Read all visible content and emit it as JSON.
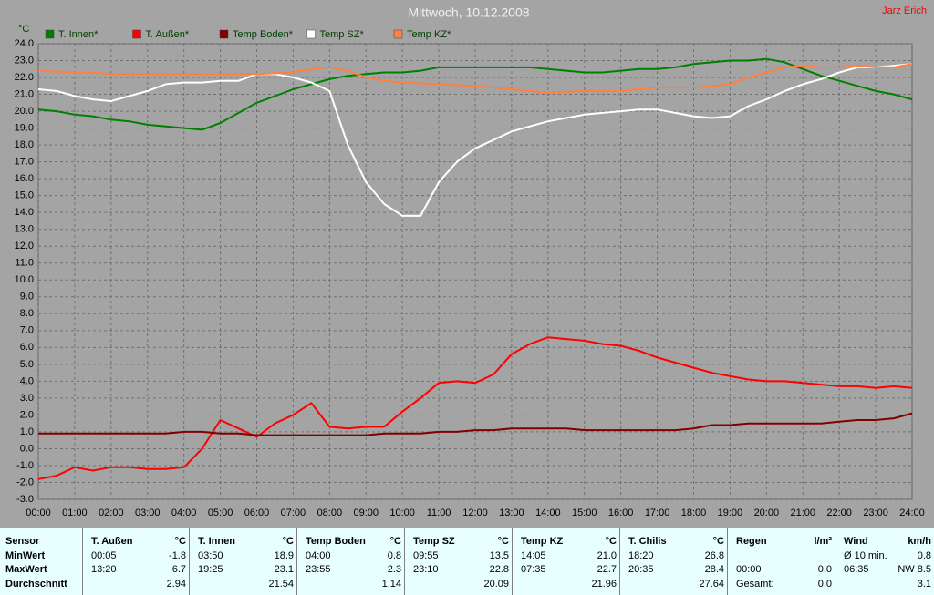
{
  "chart_data": {
    "type": "line",
    "title": "Mittwoch, 10.12.2008",
    "annotation": "Jarz Erich",
    "ylabel": "°C",
    "grid": true,
    "xlim": [
      0,
      24
    ],
    "xticks": [
      {
        "value": 0,
        "label": "00:00"
      },
      {
        "value": 1,
        "label": "01:00"
      },
      {
        "value": 2,
        "label": "02:00"
      },
      {
        "value": 3,
        "label": "03:00"
      },
      {
        "value": 4,
        "label": "04:00"
      },
      {
        "value": 5,
        "label": "05:00"
      },
      {
        "value": 6,
        "label": "06:00"
      },
      {
        "value": 7,
        "label": "07:00"
      },
      {
        "value": 8,
        "label": "08:00"
      },
      {
        "value": 9,
        "label": "09:00"
      },
      {
        "value": 10,
        "label": "10:00"
      },
      {
        "value": 11,
        "label": "11:00"
      },
      {
        "value": 12,
        "label": "12:00"
      },
      {
        "value": 13,
        "label": "13:00"
      },
      {
        "value": 14,
        "label": "14:00"
      },
      {
        "value": 15,
        "label": "15:00"
      },
      {
        "value": 16,
        "label": "16:00"
      },
      {
        "value": 17,
        "label": "17:00"
      },
      {
        "value": 18,
        "label": "18:00"
      },
      {
        "value": 19,
        "label": "19:00"
      },
      {
        "value": 20,
        "label": "20:00"
      },
      {
        "value": 21,
        "label": "21:00"
      },
      {
        "value": 22,
        "label": "22:00"
      },
      {
        "value": 23,
        "label": "23:00"
      },
      {
        "value": 24,
        "label": "24:00"
      }
    ],
    "ylim": [
      -3,
      24
    ],
    "yticks": [
      {
        "value": 24,
        "label": "24.0"
      },
      {
        "value": 23,
        "label": "23.0"
      },
      {
        "value": 22,
        "label": "22.0"
      },
      {
        "value": 21,
        "label": "21.0"
      },
      {
        "value": 20,
        "label": "20.0"
      },
      {
        "value": 19,
        "label": "19.0"
      },
      {
        "value": 18,
        "label": "18.0"
      },
      {
        "value": 17,
        "label": "17.0"
      },
      {
        "value": 16,
        "label": "16.0"
      },
      {
        "value": 15,
        "label": "15.0"
      },
      {
        "value": 14,
        "label": "14.0"
      },
      {
        "value": 13,
        "label": "13.0"
      },
      {
        "value": 12,
        "label": "12.0"
      },
      {
        "value": 11,
        "label": "11.0"
      },
      {
        "value": 10,
        "label": "10.0"
      },
      {
        "value": 9,
        "label": "9.0"
      },
      {
        "value": 8,
        "label": "8.0"
      },
      {
        "value": 7,
        "label": "7.0"
      },
      {
        "value": 6,
        "label": "6.0"
      },
      {
        "value": 5,
        "label": "5.0"
      },
      {
        "value": 4,
        "label": "4.0"
      },
      {
        "value": 3,
        "label": "3.0"
      },
      {
        "value": 2,
        "label": "2.0"
      },
      {
        "value": 1,
        "label": "1.0"
      },
      {
        "value": 0,
        "label": "0.0"
      },
      {
        "value": -1,
        "label": "-1.0"
      },
      {
        "value": -2,
        "label": "-2.0"
      },
      {
        "value": -3,
        "label": "-3.0"
      }
    ],
    "x": [
      0,
      0.5,
      1,
      1.5,
      2,
      2.5,
      3,
      3.5,
      4,
      4.5,
      5,
      5.5,
      6,
      6.5,
      7,
      7.5,
      8,
      8.5,
      9,
      9.5,
      10,
      10.5,
      11,
      11.5,
      12,
      12.5,
      13,
      13.5,
      14,
      14.5,
      15,
      15.5,
      16,
      16.5,
      17,
      17.5,
      18,
      18.5,
      19,
      19.5,
      20,
      20.5,
      21,
      21.5,
      22,
      22.5,
      23,
      23.5,
      24
    ],
    "series": [
      {
        "name": "T. Innen*",
        "color": "#008000",
        "values": [
          20.1,
          20.0,
          19.8,
          19.7,
          19.5,
          19.4,
          19.2,
          19.1,
          19.0,
          18.9,
          19.3,
          19.9,
          20.5,
          20.9,
          21.3,
          21.6,
          21.9,
          22.1,
          22.2,
          22.3,
          22.3,
          22.4,
          22.6,
          22.6,
          22.6,
          22.6,
          22.6,
          22.6,
          22.5,
          22.4,
          22.3,
          22.3,
          22.4,
          22.5,
          22.5,
          22.6,
          22.8,
          22.9,
          23.0,
          23.0,
          23.1,
          22.9,
          22.5,
          22.1,
          21.8,
          21.5,
          21.2,
          21.0,
          20.7
        ]
      },
      {
        "name": "T. Außen*",
        "color": "#ff0000",
        "values": [
          -1.8,
          -1.6,
          -1.1,
          -1.3,
          -1.1,
          -1.1,
          -1.2,
          -1.2,
          -1.1,
          0.0,
          1.7,
          1.2,
          0.7,
          1.5,
          2.0,
          2.7,
          1.3,
          1.2,
          1.3,
          1.3,
          2.2,
          3.0,
          3.9,
          4.0,
          3.9,
          4.4,
          5.6,
          6.2,
          6.6,
          6.5,
          6.4,
          6.2,
          6.1,
          5.8,
          5.4,
          5.1,
          4.8,
          4.5,
          4.3,
          4.1,
          4.0,
          4.0,
          3.9,
          3.8,
          3.7,
          3.7,
          3.6,
          3.7,
          3.6
        ]
      },
      {
        "name": "Temp Boden*",
        "color": "#800000",
        "values": [
          0.9,
          0.9,
          0.9,
          0.9,
          0.9,
          0.9,
          0.9,
          0.9,
          1.0,
          1.0,
          0.9,
          0.9,
          0.8,
          0.8,
          0.8,
          0.8,
          0.8,
          0.8,
          0.8,
          0.9,
          0.9,
          0.9,
          1.0,
          1.0,
          1.1,
          1.1,
          1.2,
          1.2,
          1.2,
          1.2,
          1.1,
          1.1,
          1.1,
          1.1,
          1.1,
          1.1,
          1.2,
          1.4,
          1.4,
          1.5,
          1.5,
          1.5,
          1.5,
          1.5,
          1.6,
          1.7,
          1.7,
          1.8,
          2.1
        ]
      },
      {
        "name": "Temp SZ*",
        "color": "#ffffff",
        "values": [
          21.3,
          21.2,
          20.9,
          20.7,
          20.6,
          20.9,
          21.2,
          21.6,
          21.7,
          21.7,
          21.8,
          21.8,
          22.2,
          22.2,
          22.0,
          21.7,
          21.2,
          18.0,
          15.8,
          14.5,
          13.8,
          13.8,
          15.8,
          17.0,
          17.8,
          18.3,
          18.8,
          19.1,
          19.4,
          19.6,
          19.8,
          19.9,
          20.0,
          20.1,
          20.1,
          19.9,
          19.7,
          19.6,
          19.7,
          20.3,
          20.7,
          21.2,
          21.6,
          21.9,
          22.3,
          22.6,
          22.6,
          22.7,
          22.8
        ]
      },
      {
        "name": "Temp KZ*",
        "color": "#ff8040",
        "values": [
          22.4,
          22.35,
          22.3,
          22.3,
          22.2,
          22.2,
          22.2,
          22.2,
          22.2,
          22.2,
          22.2,
          22.2,
          22.2,
          22.25,
          22.3,
          22.5,
          22.6,
          22.4,
          22.0,
          21.8,
          21.7,
          21.65,
          21.6,
          21.55,
          21.5,
          21.4,
          21.3,
          21.2,
          21.1,
          21.15,
          21.2,
          21.2,
          21.2,
          21.3,
          21.4,
          21.4,
          21.4,
          21.5,
          21.6,
          22.0,
          22.3,
          22.6,
          22.7,
          22.6,
          22.6,
          22.7,
          22.6,
          22.6,
          22.8
        ]
      }
    ]
  },
  "table": {
    "rows": [
      [
        "Sensor",
        "T. Außen",
        "°C",
        "T. Innen",
        "°C",
        "Temp Boden",
        "°C",
        "Temp SZ",
        "°C",
        "Temp KZ",
        "°C",
        "T. Chilis",
        "°C",
        "Regen",
        "l/m²",
        "Wind",
        "km/h"
      ],
      [
        "MinWert",
        "00:05",
        "-1.8",
        "03:50",
        "18.9",
        "04:00",
        "0.8",
        "09:55",
        "13.5",
        "14:05",
        "21.0",
        "18:20",
        "26.8",
        null,
        null,
        "Ø 10 min.",
        "0.8"
      ],
      [
        "MaxWert",
        "13:20",
        "6.7",
        "19:25",
        "23.1",
        "23:55",
        "2.3",
        "23:10",
        "22.8",
        "07:35",
        "22.7",
        "20:35",
        "28.4",
        "00:00",
        "0.0",
        "06:35",
        "NW 8.5"
      ],
      [
        "Durchschnitt",
        null,
        "2.94",
        null,
        "21.54",
        null,
        "1.14",
        null,
        "20.09",
        null,
        "21.96",
        null,
        "27.64",
        "Gesamt:",
        "0.0",
        null,
        "3.1"
      ]
    ]
  }
}
